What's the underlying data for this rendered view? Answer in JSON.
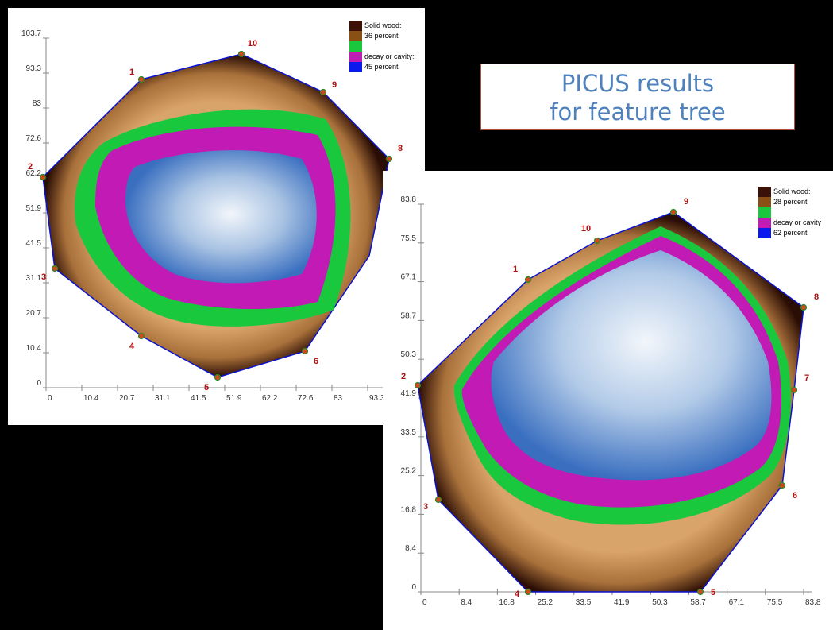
{
  "title_box": {
    "line1": "PICUS results",
    "line2": "for feature tree"
  },
  "colors": {
    "solid_dark": "#3b1006",
    "solid": "#8a4f14",
    "healthy": "#d9a46a",
    "decay_green": "#19c83c",
    "cavity_magenta": "#c21ab4",
    "cavity_blue": "#0a1aee",
    "outline": "#0a12d0",
    "sensor_label": "#b01010"
  },
  "tomogram_a": {
    "legend": {
      "solid_label": "Solid wood:",
      "solid_percent": "36 percent",
      "decay_label": "decay or cavity:",
      "decay_percent": "45 percent"
    },
    "y_ticks": [
      "103.7",
      "93.3",
      "83",
      "72.6",
      "62.2",
      "51.9",
      "41.5",
      "31.1",
      "20.7",
      "10.4",
      "0"
    ],
    "x_ticks": [
      "0",
      "10.4",
      "20.7",
      "31.1",
      "41.5",
      "51.9",
      "62.2",
      "72.6",
      "83",
      "93.3"
    ],
    "sensors": [
      "1",
      "2",
      "3",
      "4",
      "5",
      "6",
      "8",
      "9",
      "10"
    ]
  },
  "tomogram_b": {
    "legend": {
      "solid_label": "Solid wood:",
      "solid_percent": "28 percent",
      "decay_label": "decay or cavity",
      "decay_percent": "62 percent"
    },
    "y_ticks": [
      "83.8",
      "75.5",
      "67.1",
      "58.7",
      "50.3",
      "41.9",
      "33.5",
      "25.2",
      "16.8",
      "8.4",
      "0"
    ],
    "x_ticks": [
      "0",
      "8.4",
      "16.8",
      "25.2",
      "33.5",
      "41.9",
      "50.3",
      "58.7",
      "67.1",
      "75.5",
      "83.8"
    ],
    "sensors": [
      "1",
      "2",
      "3",
      "4",
      "5",
      "6",
      "7",
      "8",
      "9",
      "10"
    ]
  }
}
